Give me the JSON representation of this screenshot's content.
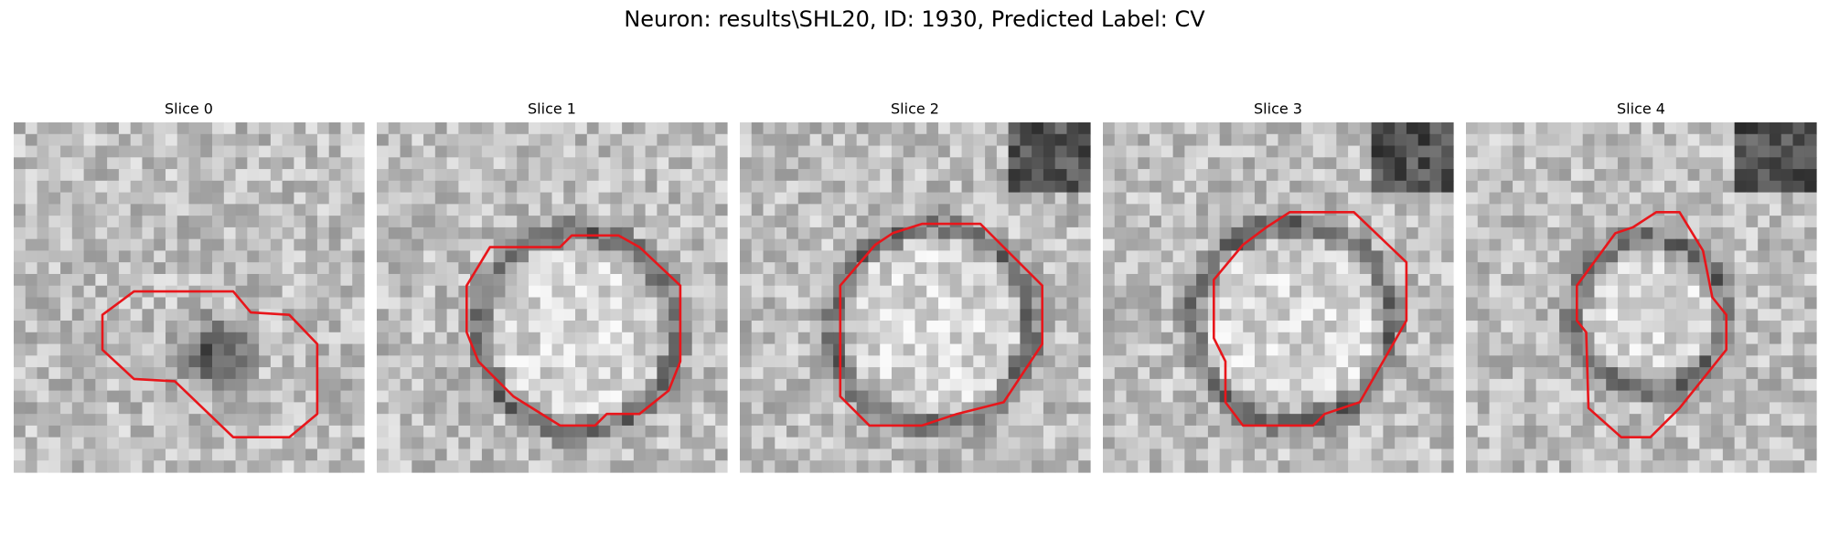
{
  "title": "Neuron: results\\SHL20, ID: 1930, Predicted Label: CV",
  "panels": [
    {
      "title": "Slice 0"
    },
    {
      "title": "Slice 1"
    },
    {
      "title": "Slice 2"
    },
    {
      "title": "Slice 3"
    },
    {
      "title": "Slice 4"
    }
  ]
}
